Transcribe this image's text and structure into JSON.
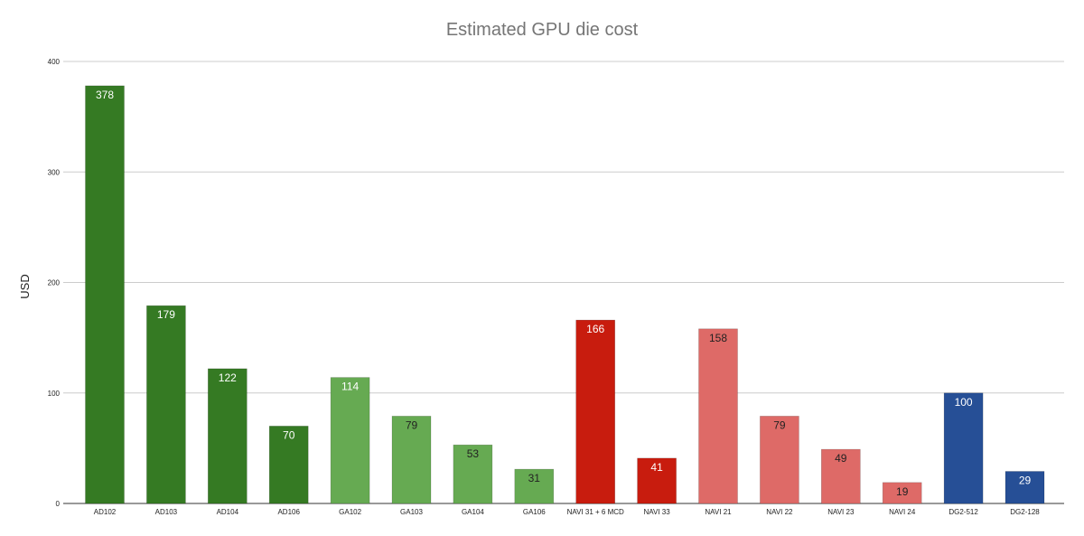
{
  "chart_data": {
    "type": "bar",
    "title": "Estimated GPU die cost",
    "xlabel": "",
    "ylabel": "USD",
    "ylim": [
      0,
      400
    ],
    "yticks": [
      "0",
      "100",
      "200",
      "300",
      "400"
    ],
    "grid": true,
    "legend": "none",
    "categories": [
      "AD102",
      "AD103",
      "AD104",
      "AD106",
      "GA102",
      "GA103",
      "GA104",
      "GA106",
      "NAVI 31 + 6 MCD",
      "NAVI 33",
      "NAVI 21",
      "NAVI 22",
      "NAVI 23",
      "NAVI 24",
      "DG2-512",
      "DG2-128"
    ],
    "values": [
      378,
      179,
      122,
      70,
      114,
      79,
      53,
      31,
      166,
      41,
      158,
      79,
      49,
      19,
      100,
      29
    ],
    "bar_colors": [
      "#357a23",
      "#357a23",
      "#357a23",
      "#357a23",
      "#66aa52",
      "#66aa52",
      "#66aa52",
      "#66aa52",
      "#c81c0e",
      "#c81c0e",
      "#de6a67",
      "#de6a67",
      "#de6a67",
      "#de6a67",
      "#264f96",
      "#264f96"
    ],
    "label_colors": [
      "#ffffff",
      "#ffffff",
      "#ffffff",
      "#ffffff",
      "#ffffff",
      "#222222",
      "#222222",
      "#222222",
      "#ffffff",
      "#ffffff",
      "#222222",
      "#222222",
      "#222222",
      "#222222",
      "#ffffff",
      "#ffffff"
    ]
  }
}
